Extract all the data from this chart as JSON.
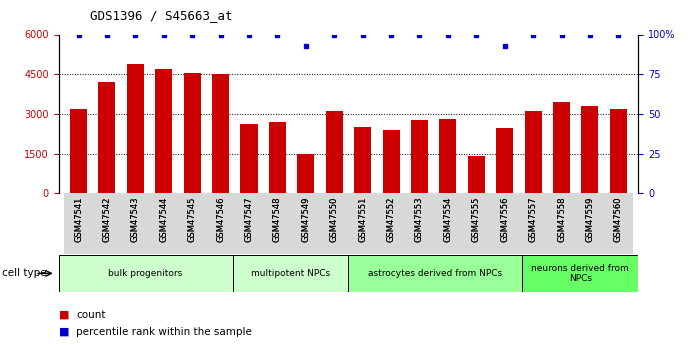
{
  "title": "GDS1396 / S45663_at",
  "samples": [
    "GSM47541",
    "GSM47542",
    "GSM47543",
    "GSM47544",
    "GSM47545",
    "GSM47546",
    "GSM47547",
    "GSM47548",
    "GSM47549",
    "GSM47550",
    "GSM47551",
    "GSM47552",
    "GSM47553",
    "GSM47554",
    "GSM47555",
    "GSM47556",
    "GSM47557",
    "GSM47558",
    "GSM47559",
    "GSM47560"
  ],
  "counts": [
    3200,
    4200,
    4900,
    4700,
    4550,
    4500,
    2600,
    2700,
    1500,
    3100,
    2500,
    2400,
    2750,
    2800,
    1400,
    2450,
    3100,
    3450,
    3300,
    3200
  ],
  "percentile": [
    100,
    100,
    100,
    100,
    100,
    100,
    100,
    100,
    93,
    100,
    100,
    100,
    100,
    100,
    100,
    93,
    100,
    100,
    100,
    100
  ],
  "bar_color": "#cc0000",
  "dot_color": "#0000cc",
  "ylim_left": [
    0,
    6000
  ],
  "ylim_right": [
    0,
    100
  ],
  "yticks_left": [
    0,
    1500,
    3000,
    4500,
    6000
  ],
  "ytick_labels_left": [
    "0",
    "1500",
    "3000",
    "4500",
    "6000"
  ],
  "yticks_right": [
    0,
    25,
    50,
    75,
    100
  ],
  "ytick_labels_right": [
    "0",
    "25",
    "50",
    "75",
    "100%"
  ],
  "cell_type_groups": [
    {
      "label": "bulk progenitors",
      "start": 0,
      "end": 5,
      "color": "#ccffcc"
    },
    {
      "label": "multipotent NPCs",
      "start": 6,
      "end": 9,
      "color": "#ccffcc"
    },
    {
      "label": "astrocytes derived from NPCs",
      "start": 10,
      "end": 15,
      "color": "#99ff99"
    },
    {
      "label": "neurons derived from\nNPCs",
      "start": 16,
      "end": 19,
      "color": "#66ff66"
    }
  ],
  "cell_type_label": "cell type",
  "legend_count_label": "count",
  "legend_pct_label": "percentile rank within the sample",
  "bg_color": "#ffffff",
  "plot_bg_color": "#ffffff",
  "tick_label_color_left": "#cc0000",
  "tick_label_color_right": "#0000cc",
  "title_color": "#000000",
  "grid_yticks": [
    1500,
    3000,
    4500
  ]
}
